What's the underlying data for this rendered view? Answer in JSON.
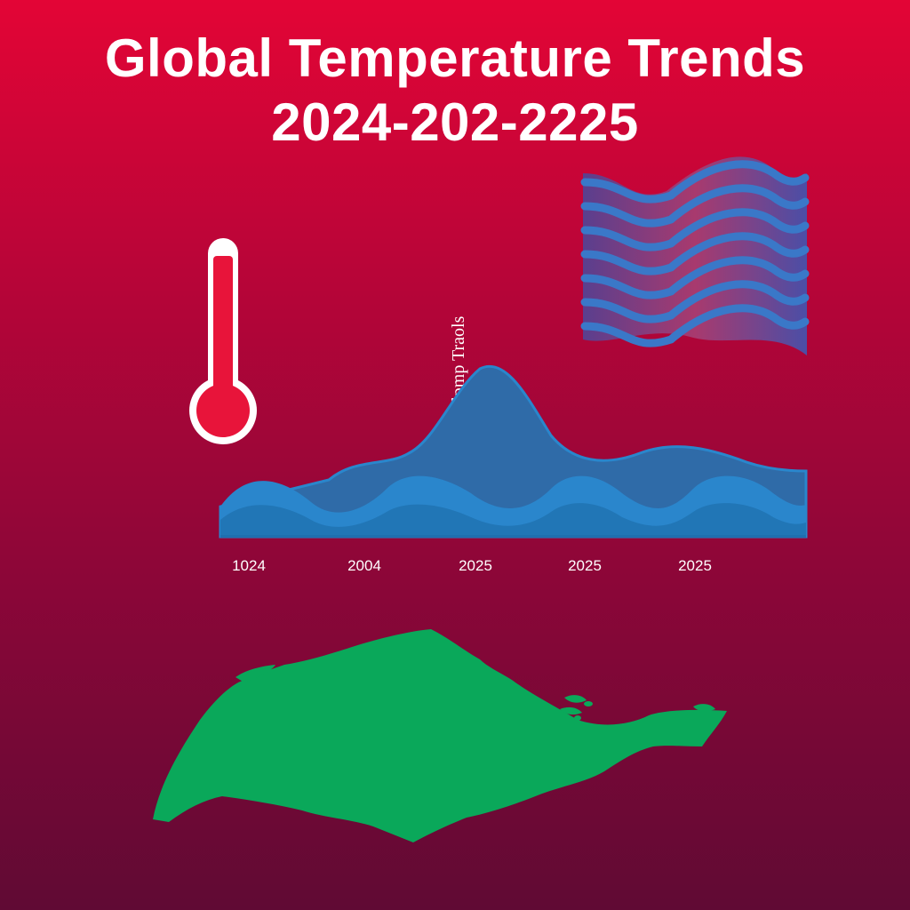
{
  "title": {
    "line1": "Global Temperature Trends",
    "line2": "2024-202-2225"
  },
  "chart": {
    "vertical_label": "Timlpmp Traols",
    "x_ticks": [
      "1024",
      "2004",
      "2025",
      "2025",
      "2025"
    ]
  },
  "icons": {
    "thermometer": "thermometer-icon",
    "map": "map-silhouette",
    "waves": "wave-pattern"
  },
  "colors": {
    "background_top": "#e30536",
    "background_bottom": "#600a34",
    "thermometer": "#e8143a",
    "wave_blue": "#2a86cc",
    "map_green": "#0aa85a"
  }
}
